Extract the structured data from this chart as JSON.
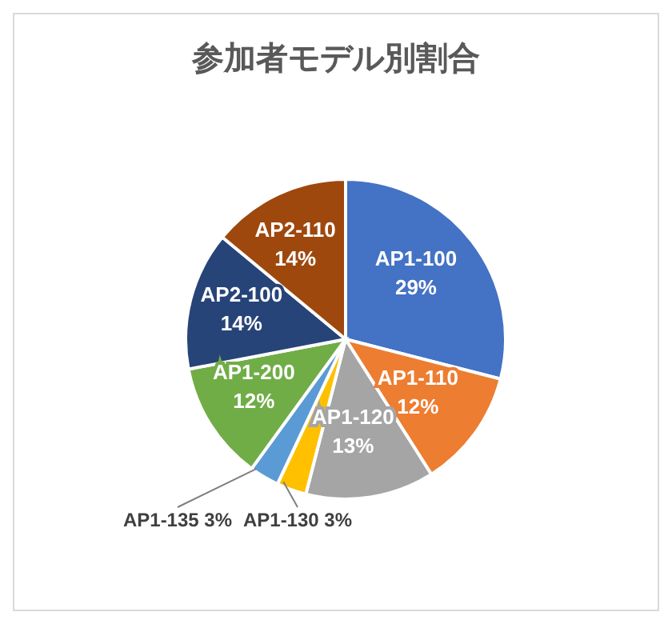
{
  "chart_data": {
    "type": "pie",
    "title": "参加者モデル別割合",
    "categories": [
      "AP1-100",
      "AP1-110",
      "AP1-120",
      "AP1-130",
      "AP1-135",
      "AP1-200",
      "AP2-100",
      "AP2-110"
    ],
    "values": [
      29,
      12,
      13,
      3,
      3,
      12,
      14,
      14
    ],
    "value_labels": [
      "29%",
      "12%",
      "13%",
      "3%",
      "3%",
      "12%",
      "14%",
      "14%"
    ],
    "colors": [
      "#4472c4",
      "#ed7d31",
      "#a5a5a5",
      "#ffc000",
      "#5b9bd5",
      "#70ad47",
      "#264478",
      "#9e480e"
    ],
    "legend": false
  }
}
